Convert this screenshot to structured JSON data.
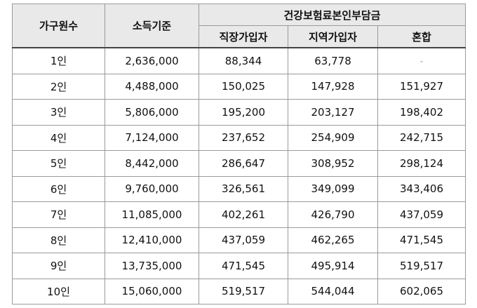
{
  "header": {
    "household": "가구원수",
    "income": "소득기준",
    "premium_group": "건강보험료본인부담금",
    "employee": "직장가입자",
    "regional": "지역가입자",
    "mixed": "혼합"
  },
  "rows": [
    {
      "household": "1인",
      "income": "2,636,000",
      "employee": "88,344",
      "regional": "63,778",
      "mixed": "-"
    },
    {
      "household": "2인",
      "income": "4,488,000",
      "employee": "150,025",
      "regional": "147,928",
      "mixed": "151,927"
    },
    {
      "household": "3인",
      "income": "5,806,000",
      "employee": "195,200",
      "regional": "203,127",
      "mixed": "198,402"
    },
    {
      "household": "4인",
      "income": "7,124,000",
      "employee": "237,652",
      "regional": "254,909",
      "mixed": "242,715"
    },
    {
      "household": "5인",
      "income": "8,442,000",
      "employee": "286,647",
      "regional": "308,952",
      "mixed": "298,124"
    },
    {
      "household": "6인",
      "income": "9,760,000",
      "employee": "326,561",
      "regional": "349,099",
      "mixed": "343,406"
    },
    {
      "household": "7인",
      "income": "11,085,000",
      "employee": "402,261",
      "regional": "426,790",
      "mixed": "437,059"
    },
    {
      "household": "8인",
      "income": "12,410,000",
      "employee": "437,059",
      "regional": "462,265",
      "mixed": "471,545"
    },
    {
      "household": "9인",
      "income": "13,735,000",
      "employee": "471,545",
      "regional": "495,914",
      "mixed": "519,517"
    },
    {
      "household": "10인",
      "income": "15,060,000",
      "employee": "519,517",
      "regional": "544,044",
      "mixed": "602,065"
    }
  ]
}
